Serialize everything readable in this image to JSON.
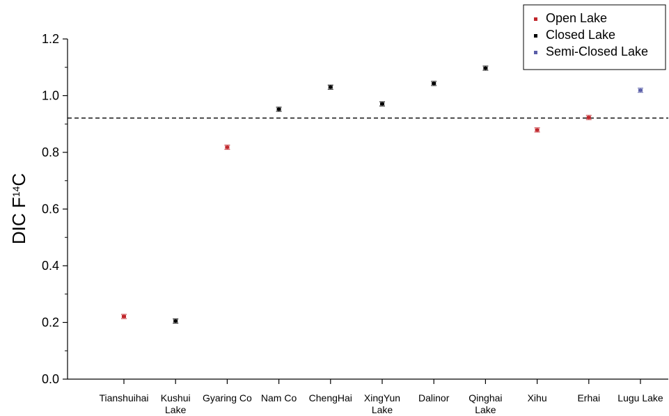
{
  "chart_data": {
    "type": "scatter",
    "title": "",
    "xlabel": "",
    "ylabel": {
      "prefix": "DIC F",
      "sup": "14",
      "suffix": "C"
    },
    "ylim": [
      0.0,
      1.2
    ],
    "yticks": [
      "0.0",
      "0.2",
      "0.4",
      "0.6",
      "0.8",
      "1.0",
      "1.2"
    ],
    "categories": [
      [
        "Tianshuihai"
      ],
      [
        "Kushui",
        "Lake"
      ],
      [
        "Gyaring Co"
      ],
      [
        "Nam Co"
      ],
      [
        "ChengHai"
      ],
      [
        "XingYun",
        "Lake"
      ],
      [
        "Dalinor"
      ],
      [
        "Qinghai",
        "Lake"
      ],
      [
        "Xihu"
      ],
      [
        "Erhai"
      ],
      [
        "Lugu Lake"
      ]
    ],
    "series": [
      {
        "name": "Open Lake",
        "color": "#c0262b",
        "points": [
          {
            "x": 0,
            "y": 0.221
          },
          {
            "x": 2,
            "y": 0.818
          },
          {
            "x": 8,
            "y": 0.879
          },
          {
            "x": 9,
            "y": 0.923
          }
        ]
      },
      {
        "name": "Closed Lake",
        "color": "#000000",
        "points": [
          {
            "x": 1,
            "y": 0.205
          },
          {
            "x": 3,
            "y": 0.952
          },
          {
            "x": 4,
            "y": 1.03
          },
          {
            "x": 5,
            "y": 0.971
          },
          {
            "x": 6,
            "y": 1.043
          },
          {
            "x": 7,
            "y": 1.097
          }
        ]
      },
      {
        "name": "Semi-Closed Lake",
        "color": "#5a5ea8",
        "points": [
          {
            "x": 10,
            "y": 1.019
          }
        ]
      }
    ],
    "reference_line": {
      "y": 0.921,
      "style": "dashed"
    },
    "legend_position": "top-right",
    "grid": false
  }
}
